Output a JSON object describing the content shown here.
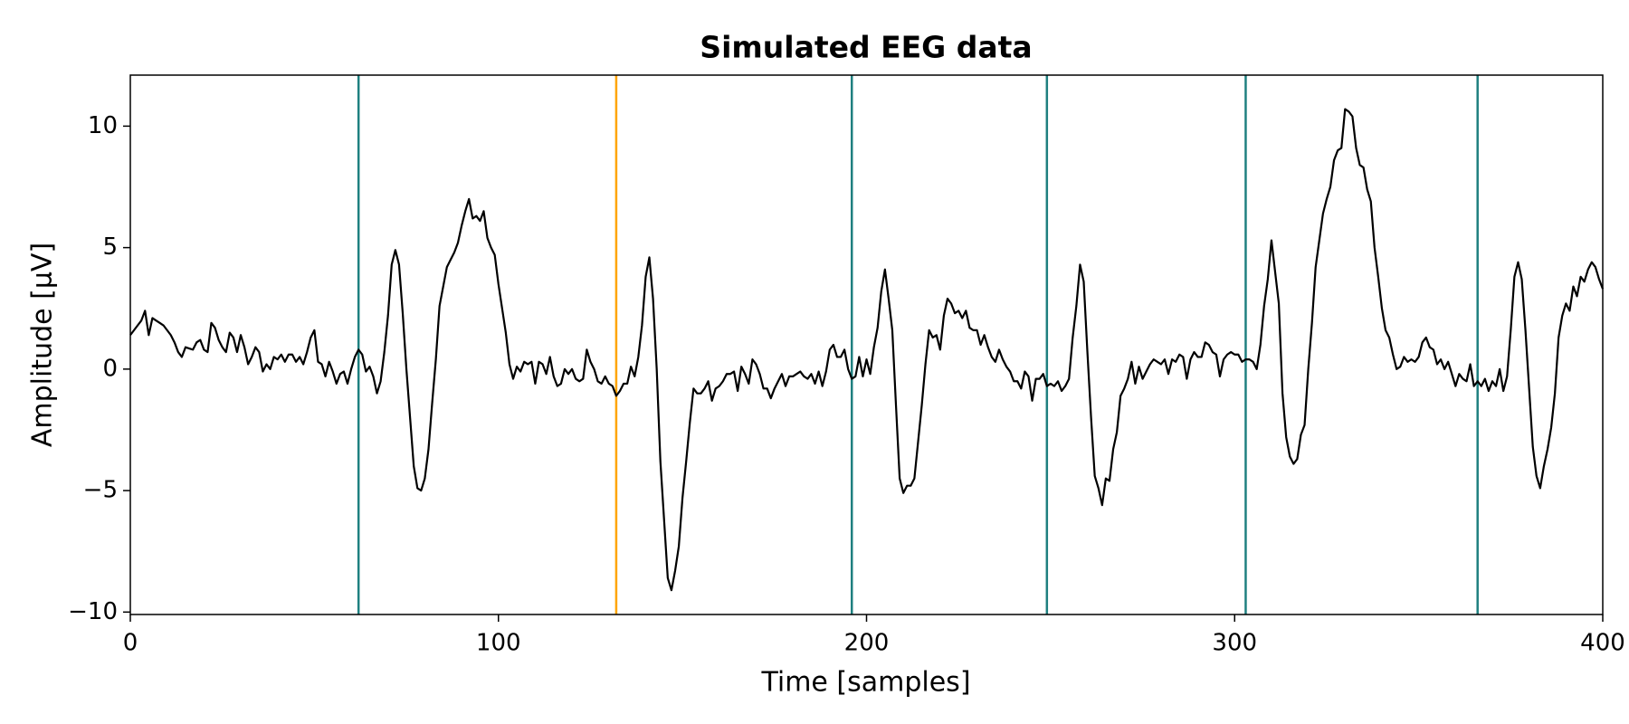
{
  "chart_data": {
    "type": "line",
    "title": "Simulated EEG data",
    "xlabel": "Time [samples]",
    "ylabel": "Amplitude [µV]",
    "xlim": [
      0,
      400
    ],
    "ylim": [
      -10.1,
      12.1
    ],
    "xticks": [
      0,
      100,
      200,
      300,
      400
    ],
    "yticks": [
      {
        "value": -10,
        "label": "−10"
      },
      {
        "value": -5,
        "label": "−5"
      },
      0,
      5,
      10
    ],
    "grid": false,
    "vlines": [
      {
        "x": 62,
        "color": "#1f8080"
      },
      {
        "x": 132,
        "color": "#ffa500"
      },
      {
        "x": 196,
        "color": "#1f8080"
      },
      {
        "x": 249,
        "color": "#1f8080"
      },
      {
        "x": 303,
        "color": "#1f8080"
      },
      {
        "x": 366,
        "color": "#1f8080"
      }
    ],
    "x": [
      0,
      1,
      2,
      3,
      4,
      5,
      6,
      7,
      8,
      9,
      10,
      11,
      12,
      13,
      14,
      15,
      16,
      17,
      18,
      19,
      20,
      21,
      22,
      23,
      24,
      25,
      26,
      27,
      28,
      29,
      30,
      31,
      32,
      33,
      34,
      35,
      36,
      37,
      38,
      39,
      40,
      41,
      42,
      43,
      44,
      45,
      46,
      47,
      48,
      49,
      50,
      51,
      52,
      53,
      54,
      55,
      56,
      57,
      58,
      59,
      60,
      61,
      62,
      63,
      64,
      65,
      66,
      67,
      68,
      69,
      70,
      71,
      72,
      73,
      74,
      75,
      76,
      77,
      78,
      79,
      80,
      81,
      82,
      83,
      84,
      85,
      86,
      87,
      88,
      89,
      90,
      91,
      92,
      93,
      94,
      95,
      96,
      97,
      98,
      99,
      100,
      101,
      102,
      103,
      104,
      105,
      106,
      107,
      108,
      109,
      110,
      111,
      112,
      113,
      114,
      115,
      116,
      117,
      118,
      119,
      120,
      121,
      122,
      123,
      124,
      125,
      126,
      127,
      128,
      129,
      130,
      131,
      132,
      133,
      134,
      135,
      136,
      137,
      138,
      139,
      140,
      141,
      142,
      143,
      144,
      145,
      146,
      147,
      148,
      149,
      150,
      151,
      152,
      153,
      154,
      155,
      156,
      157,
      158,
      159,
      160,
      161,
      162,
      163,
      164,
      165,
      166,
      167,
      168,
      169,
      170,
      171,
      172,
      173,
      174,
      175,
      176,
      177,
      178,
      179,
      180,
      181,
      182,
      183,
      184,
      185,
      186,
      187,
      188,
      189,
      190,
      191,
      192,
      193,
      194,
      195,
      196,
      197,
      198,
      199,
      200,
      201,
      202,
      203,
      204,
      205,
      206,
      207,
      208,
      209,
      210,
      211,
      212,
      213,
      214,
      215,
      216,
      217,
      218,
      219,
      220,
      221,
      222,
      223,
      224,
      225,
      226,
      227,
      228,
      229,
      230,
      231,
      232,
      233,
      234,
      235,
      236,
      237,
      238,
      239,
      240,
      241,
      242,
      243,
      244,
      245,
      246,
      247,
      248,
      249,
      250,
      251,
      252,
      253,
      254,
      255,
      256,
      257,
      258,
      259,
      260,
      261,
      262,
      263,
      264,
      265,
      266,
      267,
      268,
      269,
      270,
      271,
      272,
      273,
      274,
      275,
      276,
      277,
      278,
      279,
      280,
      281,
      282,
      283,
      284,
      285,
      286,
      287,
      288,
      289,
      290,
      291,
      292,
      293,
      294,
      295,
      296,
      297,
      298,
      299,
      300,
      301,
      302,
      303,
      304,
      305,
      306,
      307,
      308,
      309,
      310,
      311,
      312,
      313,
      314,
      315,
      316,
      317,
      318,
      319,
      320,
      321,
      322,
      323,
      324,
      325,
      326,
      327,
      328,
      329,
      330,
      331,
      332,
      333,
      334,
      335,
      336,
      337,
      338,
      339,
      340,
      341,
      342,
      343,
      344,
      345,
      346,
      347,
      348,
      349,
      350,
      351,
      352,
      353,
      354,
      355,
      356,
      357,
      358,
      359,
      360,
      361,
      362,
      363,
      364,
      365,
      366,
      367,
      368,
      369,
      370,
      371,
      372,
      373,
      374,
      375,
      376,
      377,
      378,
      379,
      380,
      381,
      382,
      383,
      384,
      385,
      386,
      387,
      388,
      389,
      390,
      391,
      392,
      393,
      394,
      395,
      396,
      397,
      398,
      399,
      400
    ],
    "series": [
      {
        "color": "#000000",
        "values": [
          1.4,
          1.6,
          1.8,
          2.0,
          2.4,
          1.4,
          2.1,
          2.0,
          1.9,
          1.8,
          1.6,
          1.4,
          1.1,
          0.7,
          0.5,
          0.9,
          0.85,
          0.8,
          1.1,
          1.2,
          0.8,
          0.7,
          1.9,
          1.7,
          1.2,
          0.9,
          0.7,
          1.5,
          1.3,
          0.7,
          1.4,
          0.9,
          0.2,
          0.5,
          0.9,
          0.7,
          -0.1,
          0.2,
          0.0,
          0.5,
          0.4,
          0.6,
          0.3,
          0.6,
          0.6,
          0.3,
          0.5,
          0.2,
          0.7,
          1.3,
          1.6,
          0.3,
          0.2,
          -0.3,
          0.3,
          -0.1,
          -0.6,
          -0.2,
          -0.1,
          -0.6,
          0.0,
          0.5,
          0.8,
          0.6,
          -0.1,
          0.1,
          -0.3,
          -1.0,
          -0.5,
          0.7,
          2.2,
          4.3,
          4.9,
          4.3,
          2.3,
          0.0,
          -2.0,
          -4.0,
          -4.9,
          -5.0,
          -4.5,
          -3.3,
          -1.4,
          0.4,
          2.6,
          3.4,
          4.2,
          4.5,
          4.8,
          5.2,
          5.9,
          6.5,
          7.0,
          6.2,
          6.3,
          6.1,
          6.5,
          5.4,
          5.0,
          4.7,
          3.5,
          2.5,
          1.5,
          0.2,
          -0.4,
          0.1,
          -0.1,
          0.3,
          0.2,
          0.3,
          -0.6,
          0.3,
          0.2,
          -0.2,
          0.5,
          -0.3,
          -0.7,
          -0.6,
          0.0,
          -0.2,
          0.0,
          -0.4,
          -0.5,
          -0.4,
          0.8,
          0.3,
          0.0,
          -0.5,
          -0.6,
          -0.3,
          -0.6,
          -0.7,
          -1.1,
          -0.9,
          -0.6,
          -0.6,
          0.1,
          -0.3,
          0.5,
          1.8,
          3.8,
          4.6,
          2.9,
          0.0,
          -3.8,
          -6.2,
          -8.6,
          -9.1,
          -8.3,
          -7.3,
          -5.3,
          -3.8,
          -2.2,
          -0.8,
          -1.0,
          -1.0,
          -0.8,
          -0.5,
          -1.3,
          -0.8,
          -0.7,
          -0.5,
          -0.2,
          -0.2,
          -0.1,
          -0.9,
          0.1,
          -0.2,
          -0.6,
          0.4,
          0.2,
          -0.2,
          -0.8,
          -0.8,
          -1.2,
          -0.8,
          -0.5,
          -0.2,
          -0.7,
          -0.3,
          -0.3,
          -0.2,
          -0.1,
          -0.3,
          -0.4,
          -0.2,
          -0.6,
          -0.1,
          -0.7,
          -0.1,
          0.8,
          1.0,
          0.5,
          0.5,
          0.8,
          0.0,
          -0.4,
          -0.3,
          0.5,
          -0.3,
          0.4,
          -0.2,
          0.9,
          1.7,
          3.2,
          4.1,
          2.9,
          1.6,
          -1.5,
          -4.5,
          -5.1,
          -4.8,
          -4.8,
          -4.5,
          -3.0,
          -1.5,
          0.2,
          1.6,
          1.3,
          1.4,
          0.8,
          2.2,
          2.9,
          2.7,
          2.3,
          2.4,
          2.1,
          2.4,
          1.7,
          1.6,
          1.6,
          1.0,
          1.4,
          0.9,
          0.5,
          0.3,
          0.8,
          0.4,
          0.1,
          -0.1,
          -0.5,
          -0.5,
          -0.8,
          -0.1,
          -0.3,
          -1.3,
          -0.4,
          -0.4,
          -0.2,
          -0.7,
          -0.6,
          -0.7,
          -0.5,
          -0.9,
          -0.7,
          -0.4,
          1.3,
          2.6,
          4.3,
          3.6,
          0.7,
          -2.0,
          -4.4,
          -4.9,
          -5.6,
          -4.5,
          -4.6,
          -3.3,
          -2.6,
          -1.1,
          -0.8,
          -0.4,
          0.3,
          -0.6,
          0.1,
          -0.4,
          -0.1,
          0.2,
          0.4,
          0.3,
          0.2,
          0.4,
          -0.2,
          0.4,
          0.3,
          0.6,
          0.5,
          -0.4,
          0.4,
          0.7,
          0.5,
          0.5,
          1.1,
          1.0,
          0.7,
          0.6,
          -0.3,
          0.4,
          0.6,
          0.7,
          0.6,
          0.6,
          0.3,
          0.4,
          0.4,
          0.3,
          0.0,
          1.0,
          2.6,
          3.7,
          5.3,
          4.0,
          2.7,
          -1.0,
          -2.8,
          -3.6,
          -3.9,
          -3.7,
          -2.7,
          -2.3,
          0.0,
          1.9,
          4.2,
          5.3,
          6.4,
          7.0,
          7.5,
          8.6,
          9.0,
          9.1,
          10.7,
          10.6,
          10.4,
          9.1,
          8.4,
          8.3,
          7.4,
          6.9,
          5.0,
          3.8,
          2.5,
          1.6,
          1.3,
          0.6,
          0.0,
          0.1,
          0.5,
          0.3,
          0.4,
          0.3,
          0.5,
          1.1,
          1.3,
          0.9,
          0.8,
          0.2,
          0.4,
          0.0,
          0.3,
          -0.2,
          -0.7,
          -0.2,
          -0.4,
          -0.5,
          0.2,
          -0.7,
          -0.5,
          -0.7,
          -0.4,
          -0.9,
          -0.5,
          -0.7,
          0.0,
          -0.9,
          -0.3,
          1.6,
          3.8,
          4.4,
          3.7,
          1.6,
          -0.8,
          -3.2,
          -4.4,
          -4.9,
          -4.0,
          -3.3,
          -2.4,
          -1.0,
          1.3,
          2.2,
          2.7,
          2.4,
          3.4,
          3.0,
          3.8,
          3.6,
          4.1,
          4.4,
          4.2,
          3.7,
          3.3
        ]
      }
    ]
  }
}
